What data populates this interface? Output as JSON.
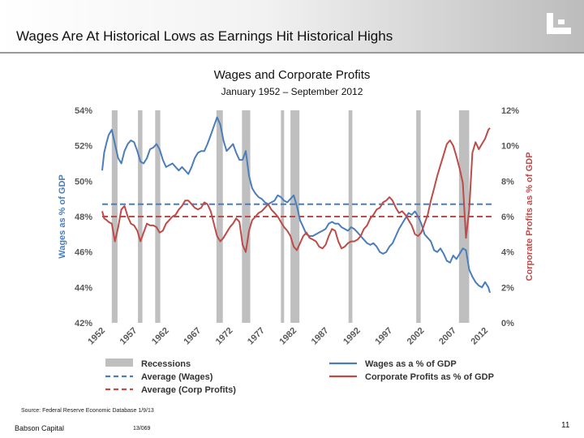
{
  "header": {
    "title": "Wages Are At Historical Lows as Earnings Hit Historical Highs",
    "logo_icon": "babson-logo-icon"
  },
  "footer": {
    "source": "Source: Federal Reserve Economic Database 1/9/13",
    "company": "Babson Capital",
    "ref": "13/069",
    "page": "11"
  },
  "colors": {
    "wages": "#4A7EBB",
    "profits": "#BE4B48",
    "recession": "#BFBFBF",
    "axis_text": "#595959"
  },
  "chart_data": {
    "type": "line",
    "title": "Wages and Corporate Profits",
    "subtitle": "January 1952 – September 2012",
    "ylabel_left": "Wages as % of GDP",
    "ylabel_right": "Corporate Profits as % of GDP",
    "x_range": [
      1952,
      2013
    ],
    "ylim_left": [
      42,
      54
    ],
    "ylim_right": [
      0,
      12
    ],
    "yticks_left": [
      "42%",
      "44%",
      "46%",
      "48%",
      "50%",
      "52%",
      "54%"
    ],
    "yticks_right": [
      "0%",
      "2%",
      "4%",
      "6%",
      "8%",
      "10%",
      "12%"
    ],
    "x_tick_labels": [
      "1952",
      "1957",
      "1962",
      "1967",
      "1972",
      "1977",
      "1982",
      "1987",
      "1992",
      "1997",
      "2002",
      "2007",
      "2012"
    ],
    "recessions": [
      [
        1953.5,
        1954.4
      ],
      [
        1957.6,
        1958.3
      ],
      [
        1960.3,
        1961.1
      ],
      [
        1969.9,
        1970.9
      ],
      [
        1973.9,
        1975.2
      ],
      [
        1980.0,
        1980.5
      ],
      [
        1981.5,
        1982.9
      ],
      [
        1990.6,
        1991.2
      ],
      [
        2001.2,
        2001.9
      ],
      [
        2007.9,
        2009.5
      ]
    ],
    "averages": {
      "wages": 48.7,
      "profits": 6.0
    },
    "series": [
      {
        "name": "Wages as a % of GDP",
        "axis": "left",
        "x": [
          1952.0,
          1952.3,
          1952.7,
          1953.0,
          1953.5,
          1954.0,
          1954.5,
          1955.0,
          1955.5,
          1956.0,
          1956.5,
          1957.0,
          1957.5,
          1958.0,
          1958.5,
          1959.0,
          1959.5,
          1960.0,
          1960.5,
          1961.0,
          1961.5,
          1962.0,
          1962.5,
          1963.0,
          1963.5,
          1964.0,
          1964.5,
          1965.0,
          1965.5,
          1966.0,
          1966.5,
          1967.0,
          1967.5,
          1968.0,
          1968.5,
          1969.0,
          1969.5,
          1970.0,
          1970.5,
          1971.0,
          1971.5,
          1972.0,
          1972.5,
          1973.0,
          1973.5,
          1974.0,
          1974.5,
          1975.0,
          1975.5,
          1976.0,
          1976.5,
          1977.0,
          1977.5,
          1978.0,
          1978.5,
          1979.0,
          1979.5,
          1980.0,
          1980.5,
          1981.0,
          1981.5,
          1982.0,
          1982.5,
          1983.0,
          1983.5,
          1984.0,
          1984.5,
          1985.0,
          1985.5,
          1986.0,
          1986.5,
          1987.0,
          1987.5,
          1988.0,
          1988.5,
          1989.0,
          1989.5,
          1990.0,
          1990.5,
          1991.0,
          1991.5,
          1992.0,
          1992.5,
          1993.0,
          1993.5,
          1994.0,
          1994.5,
          1995.0,
          1995.5,
          1996.0,
          1996.5,
          1997.0,
          1997.5,
          1998.0,
          1998.5,
          1999.0,
          1999.5,
          2000.0,
          2000.5,
          2001.0,
          2001.5,
          2002.0,
          2002.5,
          2003.0,
          2003.5,
          2004.0,
          2004.5,
          2005.0,
          2005.5,
          2006.0,
          2006.5,
          2007.0,
          2007.5,
          2008.0,
          2008.5,
          2009.0,
          2009.5,
          2010.0,
          2010.5,
          2011.0,
          2011.5,
          2012.0,
          2012.5,
          2012.75
        ],
        "values": [
          50.6,
          51.6,
          52.2,
          52.6,
          52.9,
          52.1,
          51.3,
          51.0,
          51.7,
          52.1,
          52.3,
          52.2,
          51.7,
          51.1,
          51.0,
          51.3,
          51.8,
          51.9,
          52.1,
          51.8,
          51.2,
          50.8,
          50.9,
          51.0,
          50.8,
          50.6,
          50.8,
          50.6,
          50.4,
          50.8,
          51.3,
          51.6,
          51.7,
          51.7,
          52.1,
          52.6,
          53.1,
          53.6,
          53.2,
          52.3,
          51.7,
          51.9,
          52.1,
          51.6,
          51.2,
          51.2,
          51.7,
          50.3,
          49.6,
          49.3,
          49.1,
          49.0,
          48.8,
          48.7,
          48.8,
          48.9,
          49.2,
          49.1,
          48.9,
          48.8,
          49.0,
          49.2,
          48.6,
          47.8,
          47.4,
          47.0,
          46.9,
          46.9,
          47.0,
          47.1,
          47.2,
          47.3,
          47.6,
          47.7,
          47.6,
          47.6,
          47.4,
          47.3,
          47.2,
          47.4,
          47.3,
          47.1,
          46.9,
          46.7,
          46.5,
          46.4,
          46.5,
          46.3,
          46.0,
          45.9,
          46.0,
          46.3,
          46.5,
          46.9,
          47.3,
          47.6,
          47.9,
          48.2,
          48.1,
          48.3,
          48.0,
          47.6,
          47.0,
          46.8,
          46.6,
          46.1,
          46.0,
          46.2,
          45.9,
          45.5,
          45.4,
          45.8,
          45.6,
          45.9,
          46.2,
          46.1,
          45.0,
          44.6,
          44.3,
          44.1,
          44.0,
          44.3,
          44.0,
          43.7
        ]
      },
      {
        "name": "Corporate Profits as % of GDP",
        "axis": "right",
        "x": [
          1952.0,
          1952.3,
          1952.7,
          1953.0,
          1953.5,
          1954.0,
          1954.5,
          1955.0,
          1955.5,
          1956.0,
          1956.5,
          1957.0,
          1957.5,
          1958.0,
          1958.5,
          1959.0,
          1959.5,
          1960.0,
          1960.5,
          1961.0,
          1961.5,
          1962.0,
          1962.5,
          1963.0,
          1963.5,
          1964.0,
          1964.5,
          1965.0,
          1965.5,
          1966.0,
          1966.5,
          1967.0,
          1967.5,
          1968.0,
          1968.5,
          1969.0,
          1969.5,
          1970.0,
          1970.5,
          1971.0,
          1971.5,
          1972.0,
          1972.5,
          1973.0,
          1973.5,
          1974.0,
          1974.5,
          1975.0,
          1975.5,
          1976.0,
          1976.5,
          1977.0,
          1977.5,
          1978.0,
          1978.5,
          1979.0,
          1979.5,
          1980.0,
          1980.5,
          1981.0,
          1981.5,
          1982.0,
          1982.5,
          1983.0,
          1983.5,
          1984.0,
          1984.5,
          1985.0,
          1985.5,
          1986.0,
          1986.5,
          1987.0,
          1987.5,
          1988.0,
          1988.5,
          1989.0,
          1989.5,
          1990.0,
          1990.5,
          1991.0,
          1991.5,
          1992.0,
          1992.5,
          1993.0,
          1993.5,
          1994.0,
          1994.5,
          1995.0,
          1995.5,
          1996.0,
          1996.5,
          1997.0,
          1997.5,
          1998.0,
          1998.5,
          1999.0,
          1999.5,
          2000.0,
          2000.5,
          2001.0,
          2001.5,
          2002.0,
          2002.5,
          2003.0,
          2003.5,
          2004.0,
          2004.5,
          2005.0,
          2005.5,
          2006.0,
          2006.5,
          2007.0,
          2007.5,
          2008.0,
          2008.5,
          2009.0,
          2009.5,
          2010.0,
          2010.5,
          2011.0,
          2011.5,
          2012.0,
          2012.5,
          2012.75
        ],
        "values": [
          6.3,
          5.9,
          5.8,
          5.7,
          5.6,
          4.6,
          5.4,
          6.4,
          6.6,
          6.0,
          5.6,
          5.5,
          5.2,
          4.6,
          5.1,
          5.6,
          5.5,
          5.5,
          5.4,
          5.1,
          5.2,
          5.6,
          5.8,
          6.0,
          6.1,
          6.4,
          6.6,
          6.9,
          6.9,
          6.7,
          6.5,
          6.4,
          6.5,
          6.8,
          6.7,
          6.3,
          5.6,
          4.9,
          4.6,
          4.8,
          5.1,
          5.4,
          5.6,
          5.9,
          5.7,
          4.4,
          4.0,
          5.2,
          5.8,
          6.0,
          6.2,
          6.3,
          6.5,
          6.7,
          6.4,
          6.2,
          6.0,
          5.7,
          5.4,
          5.2,
          4.9,
          4.3,
          4.1,
          4.5,
          4.9,
          5.1,
          4.8,
          4.7,
          4.6,
          4.3,
          4.2,
          4.4,
          4.9,
          5.3,
          5.2,
          4.6,
          4.2,
          4.3,
          4.5,
          4.6,
          4.6,
          4.7,
          4.9,
          5.3,
          5.5,
          5.9,
          6.1,
          6.4,
          6.5,
          6.8,
          6.9,
          7.1,
          6.9,
          6.5,
          6.2,
          6.3,
          6.1,
          5.8,
          5.5,
          5.0,
          4.9,
          5.1,
          5.6,
          6.1,
          6.9,
          7.6,
          8.3,
          8.9,
          9.5,
          10.1,
          10.3,
          10.0,
          9.4,
          8.7,
          7.9,
          4.8,
          6.4,
          9.6,
          10.2,
          9.8,
          10.1,
          10.4,
          10.9,
          11.0
        ]
      }
    ],
    "legend": [
      {
        "label": "Recessions",
        "style": "recession"
      },
      {
        "label": "Average (Wages)",
        "style": "wages-avg"
      },
      {
        "label": "Average (Corp Profits)",
        "style": "profits-avg"
      },
      {
        "label": "Wages as a % of GDP",
        "style": "wages"
      },
      {
        "label": "Corporate Profits as % of GDP",
        "style": "profits"
      }
    ]
  }
}
